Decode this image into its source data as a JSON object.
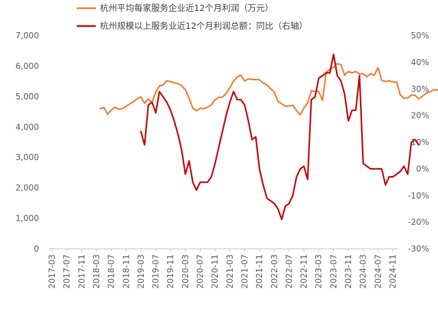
{
  "chart_data": {
    "type": "line",
    "legend": {
      "placement": "top-left"
    },
    "grid": false,
    "x_ticks": [
      "2017-03",
      "2017-07",
      "2017-11",
      "2018-03",
      "2018-07",
      "2018-11",
      "2019-03",
      "2019-07",
      "2019-11",
      "2020-03",
      "2020-07",
      "2020-11",
      "2021-03",
      "2021-07",
      "2021-11",
      "2022-03",
      "2022-07",
      "2022-11",
      "2023-03",
      "2023-07",
      "2023-11",
      "2024-03",
      "2024-07",
      "2024-11"
    ],
    "y_left": {
      "min": 0,
      "max": 7000,
      "ticks": [
        "0",
        "1,000",
        "2,000",
        "3,000",
        "4,000",
        "5,000",
        "6,000",
        "7,000"
      ]
    },
    "y_right": {
      "min": -30,
      "max": 50,
      "ticks": [
        "-30%",
        "-20%",
        "-10%",
        "0%",
        "10%",
        "20%",
        "30%",
        "40%",
        "50%"
      ]
    },
    "series": [
      {
        "name": "杭州平均每家服务企业近12个月利润（万元）",
        "axis": "left",
        "color": "#ED7D31",
        "start": "2018-04",
        "values": [
          4600,
          4640,
          4420,
          4560,
          4650,
          4580,
          4600,
          4680,
          4760,
          4830,
          4930,
          4990,
          4780,
          4920,
          4810,
          5150,
          5350,
          5380,
          5520,
          5490,
          5450,
          5420,
          5360,
          5220,
          4950,
          4620,
          4530,
          4620,
          4600,
          4650,
          4720,
          4900,
          4970,
          4980,
          5100,
          5290,
          5500,
          5650,
          5700,
          5510,
          5580,
          5560,
          5560,
          5550,
          5450,
          5380,
          5260,
          5150,
          4840,
          4760,
          4680,
          4690,
          4710,
          4540,
          4400,
          4630,
          4790,
          5190,
          5170,
          5160,
          4870,
          5800,
          5900,
          5960,
          6080,
          6050,
          5700,
          5820,
          5780,
          5820,
          5740,
          5750,
          5650,
          5750,
          5700,
          5950,
          5530,
          5490,
          5520,
          5480,
          5480,
          5060,
          4940,
          4950,
          5050,
          5040,
          4920,
          5010,
          5110,
          5150,
          5220,
          5220,
          5190,
          5130
        ]
      },
      {
        "name": "杭州规模以上服务业近12个月利润总额：同比（右轴）",
        "axis": "right",
        "color": "#C00000",
        "start": "2019-03",
        "values": [
          14,
          9,
          24,
          25,
          21,
          29,
          27,
          25,
          22,
          18,
          13,
          7,
          -2,
          3,
          -5,
          -8,
          -5,
          -5,
          -5,
          -3,
          2,
          8,
          14,
          20,
          25,
          29,
          26,
          26,
          24,
          18,
          11,
          12,
          0,
          -6,
          -11,
          -12,
          -13,
          -15,
          -19,
          -14,
          -13,
          -10,
          -3,
          0,
          1,
          -4,
          26,
          27,
          34,
          35,
          36,
          36,
          43,
          35,
          33,
          28,
          18,
          22,
          22,
          35,
          2,
          1,
          0,
          0,
          0,
          0,
          -6,
          -3,
          -3,
          -2,
          -1,
          1,
          -2,
          10,
          11,
          9
        ]
      }
    ]
  }
}
